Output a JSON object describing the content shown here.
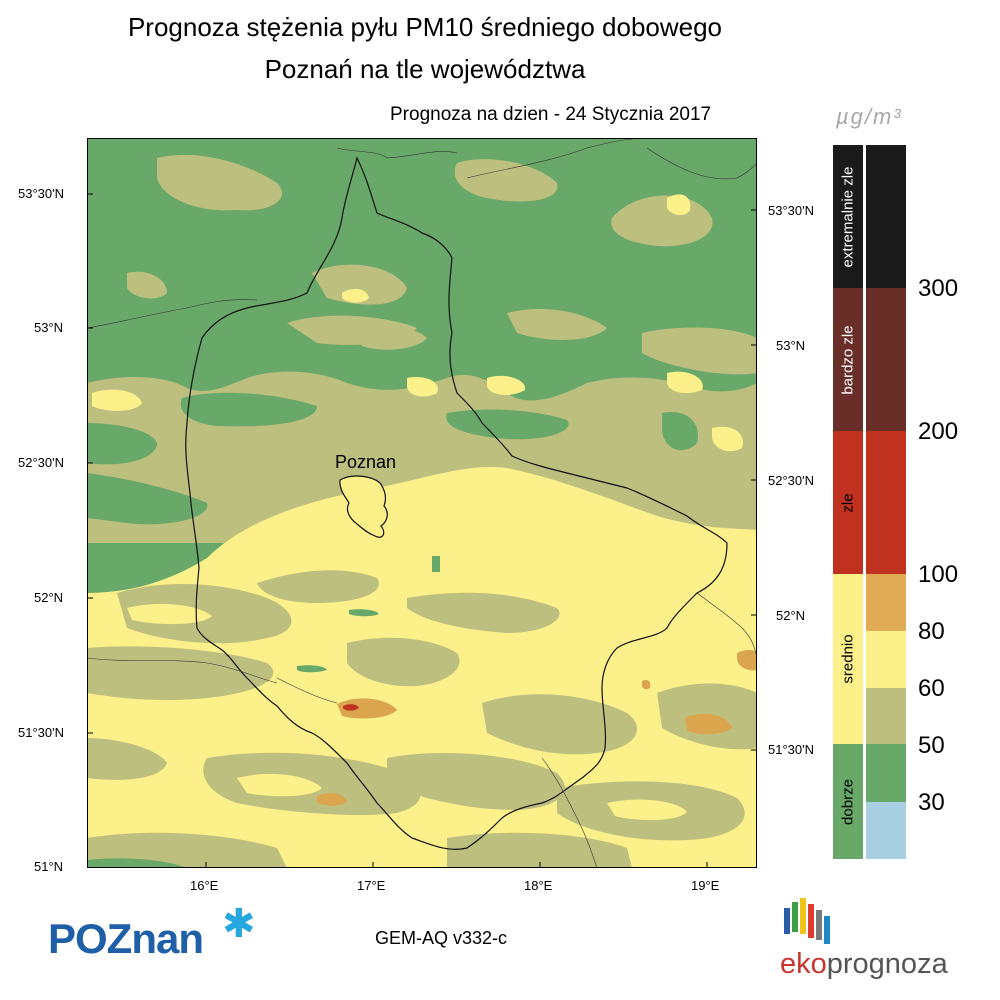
{
  "title": {
    "line1": "Prognoza stężenia pyłu PM10 średniego dobowego",
    "line2": "Poznań na tle województwa",
    "forecast_date": "Prognoza na dzien -  24 Stycznia 2017"
  },
  "map": {
    "city_label": "Poznan",
    "lat_labels_left": [
      "53°30'N",
      "53°N",
      "52°30'N",
      "52°N",
      "51°30'N",
      "51°N"
    ],
    "lat_labels_right": [
      "53°30'N",
      "53°N",
      "52°30'N",
      "52°N",
      "51°30'N"
    ],
    "lon_labels": [
      "16°E",
      "17°E",
      "18°E",
      "19°E"
    ],
    "colors": {
      "good": "#68a868",
      "moderate_low": "#bdbf7f",
      "moderate_high": "#fbf08a",
      "elevated": "#dba54e",
      "bad": "#c0321f"
    }
  },
  "legend": {
    "unit": "µg/m³",
    "categories": [
      {
        "label": "extremalnie zle",
        "color": "#1a1a1a"
      },
      {
        "label": "bardzo zle",
        "color": "#6a2e28"
      },
      {
        "label": "zle",
        "color": "#c0321f"
      },
      {
        "label": "srednio",
        "color": "#fbf08a"
      },
      {
        "label": "dobrze",
        "color": "#68a868"
      }
    ],
    "scale_colors": [
      "#1a1a1a",
      "#6a2e28",
      "#c0321f",
      "#dfab54",
      "#fbf08a",
      "#bdbf7f",
      "#68a868",
      "#a9cfe3"
    ],
    "scale_labels": [
      "300",
      "200",
      "100",
      "80",
      "60",
      "50",
      "30"
    ]
  },
  "footer": {
    "model": "GEM-AQ v332-c",
    "city_logo": "POZnan",
    "brand_eko": "eko",
    "brand_prognoza": "prognoza"
  }
}
